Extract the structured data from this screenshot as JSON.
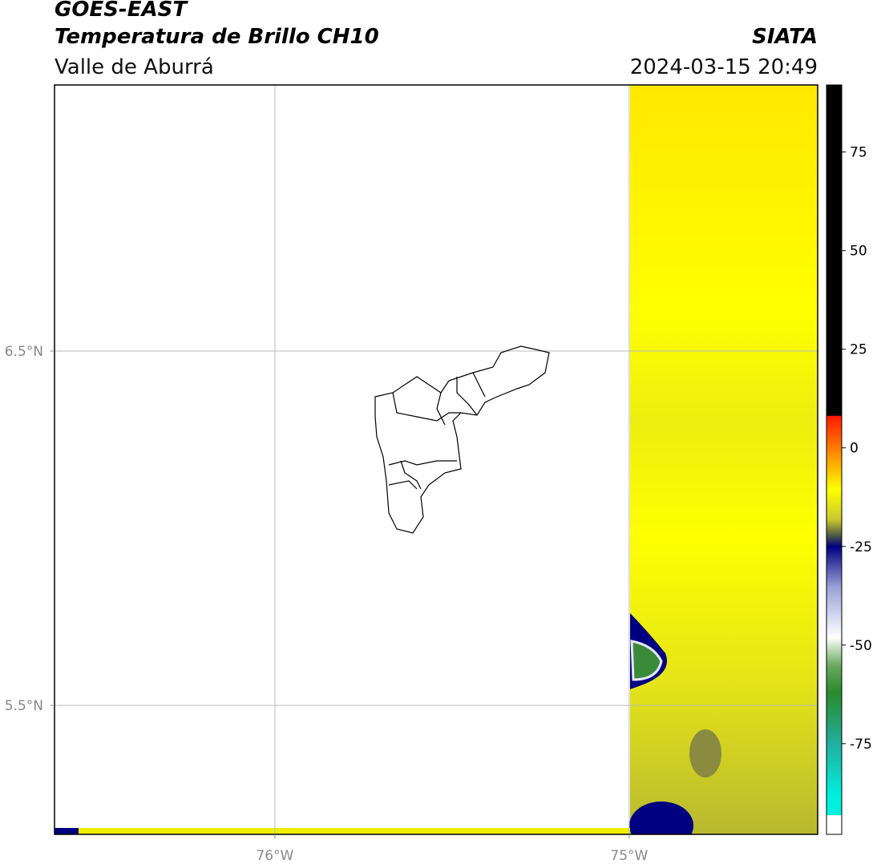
{
  "header": {
    "title": "GOES-EAST",
    "subtitle": "Temperatura de Brillo CH10",
    "region": "Valle de Aburrá",
    "source": "SIATA",
    "datetime": "2024-03-15 20:49"
  },
  "map": {
    "lonlim": [
      -76.622,
      -74.468
    ],
    "latlim": [
      5.136,
      7.251
    ],
    "lon_ticks": [
      {
        "value": -76,
        "label": "76°W"
      },
      {
        "value": -75,
        "label": "75°W"
      }
    ],
    "lat_ticks": [
      {
        "value": 6.5,
        "label": "6.5°N"
      },
      {
        "value": 5.5,
        "label": "5.5°N"
      }
    ]
  },
  "colorbar": {
    "lim": [
      -98,
      92
    ],
    "ticks": [
      75,
      50,
      25,
      0,
      -25,
      -50,
      -75
    ]
  }
}
